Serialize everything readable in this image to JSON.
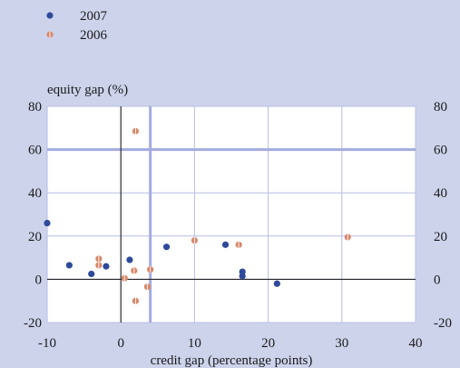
{
  "chart_data": {
    "type": "scatter",
    "title": "",
    "xlabel": "credit gap (percentage points)",
    "ylabel": "equity gap (%)",
    "xlim": [
      -10,
      40
    ],
    "ylim": [
      -20,
      80
    ],
    "x_ticks": [
      "-10",
      "0",
      "10",
      "20",
      "30",
      "40"
    ],
    "y_ticks": [
      "-20",
      "0",
      "20",
      "40",
      "60",
      "80"
    ],
    "grid": true,
    "legend_position": "top-left",
    "reference_lines": {
      "x": 4,
      "y": 60
    },
    "series": [
      {
        "name": "2007",
        "color": "#2e4a9a",
        "points": [
          {
            "x": -10,
            "y": 26
          },
          {
            "x": -7,
            "y": 6.5
          },
          {
            "x": -4,
            "y": 2.5
          },
          {
            "x": -2,
            "y": 6
          },
          {
            "x": 1.2,
            "y": 9
          },
          {
            "x": 6.2,
            "y": 15
          },
          {
            "x": 14.2,
            "y": 16
          },
          {
            "x": 16.5,
            "y": 3.5
          },
          {
            "x": 16.5,
            "y": 1.5
          },
          {
            "x": 21.2,
            "y": -2
          }
        ]
      },
      {
        "name": "2006",
        "color": "#d9876a",
        "points": [
          {
            "x": 2,
            "y": 68.5
          },
          {
            "x": -3,
            "y": 9.5
          },
          {
            "x": -3,
            "y": 6.5
          },
          {
            "x": 0.5,
            "y": 0.5
          },
          {
            "x": 1.8,
            "y": 4
          },
          {
            "x": 4,
            "y": 4.5
          },
          {
            "x": 3.6,
            "y": -3.5
          },
          {
            "x": 2,
            "y": -10
          },
          {
            "x": 10,
            "y": 18
          },
          {
            "x": 16,
            "y": 16
          },
          {
            "x": 30.8,
            "y": 19.5
          }
        ]
      }
    ]
  }
}
